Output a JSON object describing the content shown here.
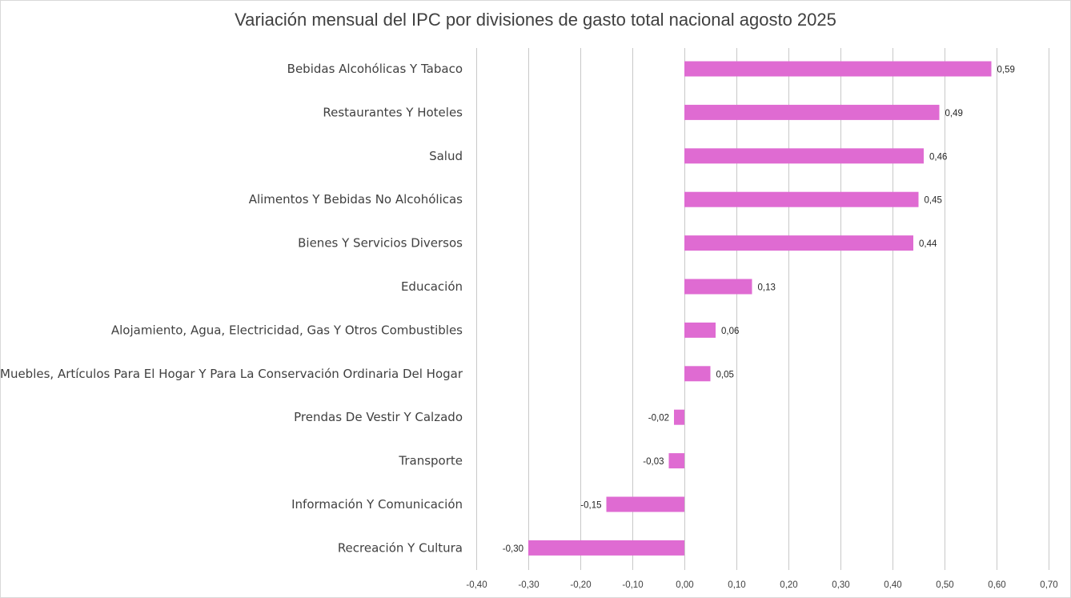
{
  "chart_data": {
    "type": "bar",
    "orientation": "horizontal",
    "title": "Variación mensual del IPC por divisiones de gasto total nacional agosto 2025",
    "xlabel": "",
    "ylabel": "",
    "categories": [
      "Bebidas Alcohólicas Y Tabaco",
      "Restaurantes Y Hoteles",
      "Salud",
      "Alimentos Y Bebidas No Alcohólicas",
      "Bienes Y Servicios Diversos",
      "Educación",
      "Alojamiento, Agua, Electricidad, Gas Y Otros Combustibles",
      "Muebles, Artículos Para El Hogar Y Para La Conservación Ordinaria Del Hogar",
      "Prendas De Vestir Y Calzado",
      "Transporte",
      "Información Y Comunicación",
      "Recreación Y Cultura"
    ],
    "values": [
      0.59,
      0.49,
      0.46,
      0.45,
      0.44,
      0.13,
      0.06,
      0.05,
      -0.02,
      -0.03,
      -0.15,
      -0.3
    ],
    "data_labels": [
      "0,59",
      "0,49",
      "0,46",
      "0,45",
      "0,44",
      "0,13",
      "0,06",
      "0,05",
      "-0,02",
      "-0,03",
      "-0,15",
      "-0,30"
    ],
    "xlim": [
      -0.4,
      0.7
    ],
    "x_ticks": [
      -0.4,
      -0.3,
      -0.2,
      -0.1,
      0.0,
      0.1,
      0.2,
      0.3,
      0.4,
      0.5,
      0.6,
      0.7
    ],
    "x_tick_labels": [
      "-0,40",
      "-0,30",
      "-0,20",
      "-0,10",
      "0,00",
      "0,10",
      "0,20",
      "0,30",
      "0,40",
      "0,50",
      "0,60",
      "0,70"
    ],
    "grid": true,
    "legend": "none",
    "bar_color": "#DF6BD2"
  }
}
